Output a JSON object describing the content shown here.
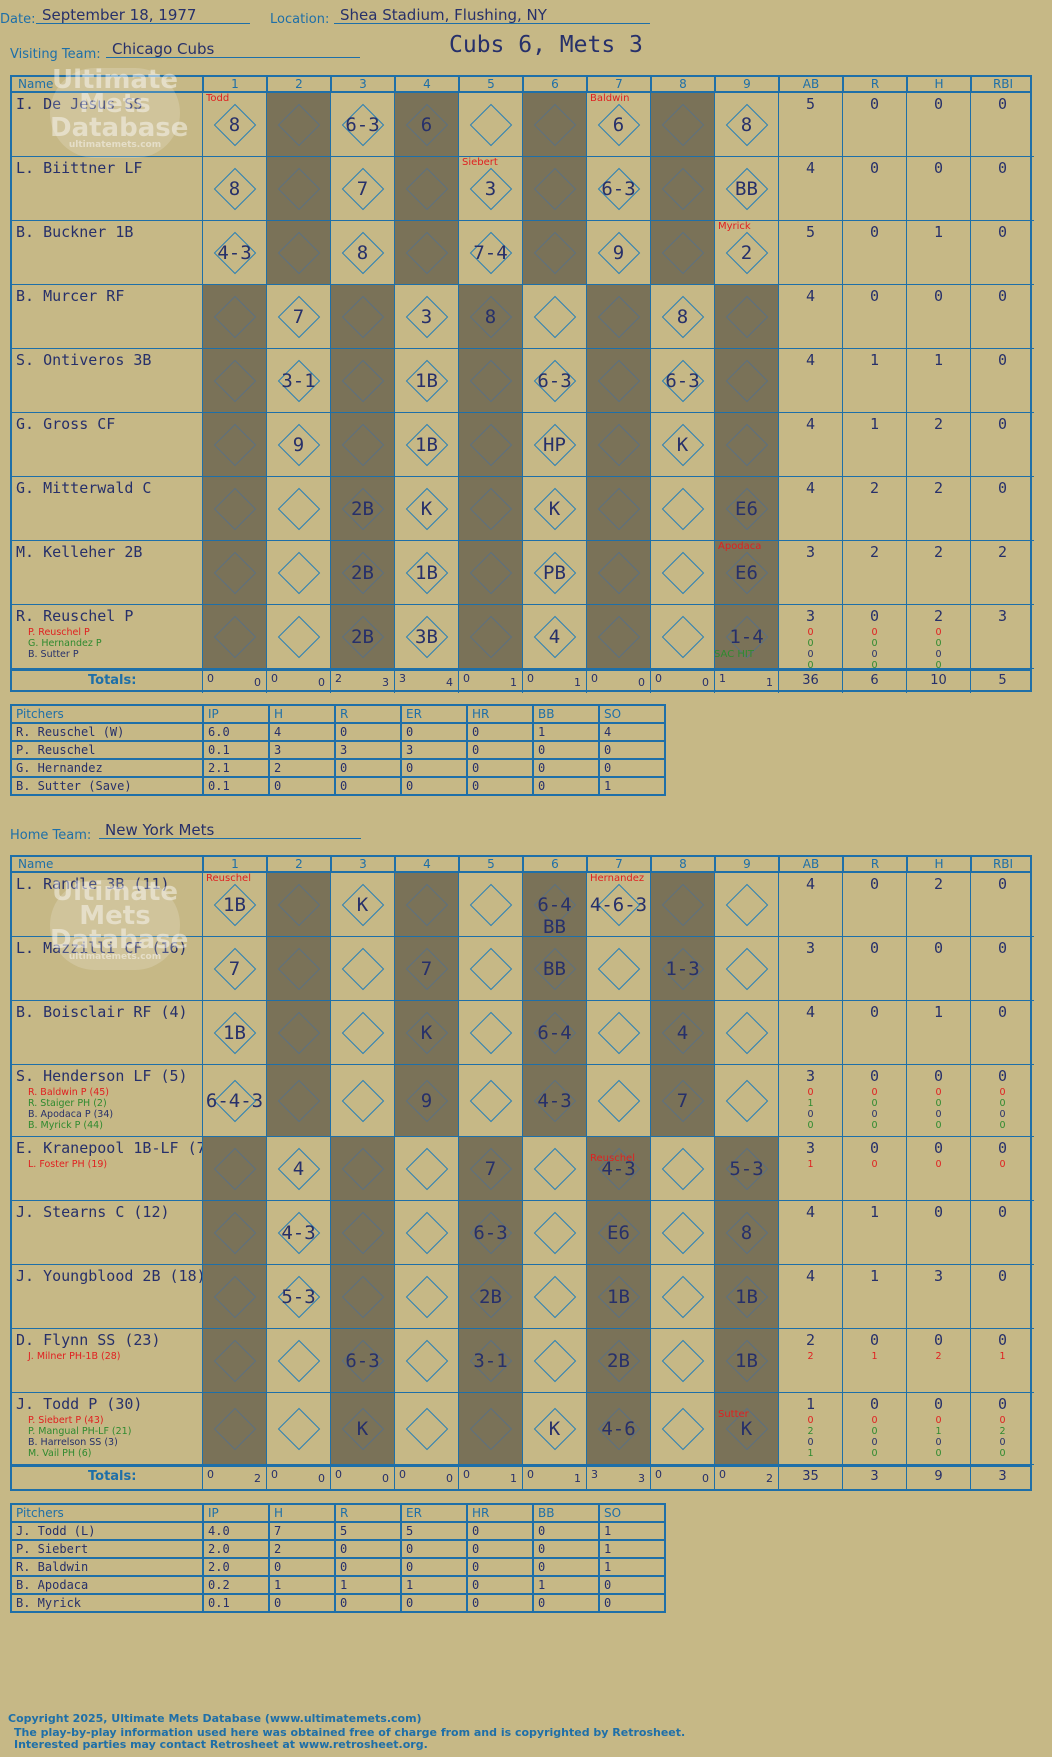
{
  "header": {
    "date_label": "Date:",
    "date": "September 18, 1977",
    "location_label": "Location:",
    "location": "Shea Stadium, Flushing, NY",
    "visiting_label": "Visiting Team:",
    "visiting_team": "Chicago Cubs",
    "score_title": "Cubs 6, Mets 3",
    "home_label": "Home Team:",
    "home_team": "New York Mets"
  },
  "grid_headers": {
    "name": "Name",
    "innings": [
      "1",
      "2",
      "3",
      "4",
      "5",
      "6",
      "7",
      "8",
      "9"
    ],
    "stats": [
      "AB",
      "R",
      "H",
      "RBI"
    ],
    "totals": "Totals:"
  },
  "visitors": {
    "players": [
      {
        "name": "I. De Jesus SS",
        "subs": [],
        "plays": [
          "8",
          "",
          "6-3",
          "6",
          "",
          "",
          "6",
          "",
          "8"
        ],
        "stats": [
          "5",
          "0",
          "0",
          "0"
        ],
        "substats": []
      },
      {
        "name": "L. Biittner LF",
        "subs": [],
        "plays": [
          "8",
          "",
          "7",
          "",
          "3",
          "",
          "6-3",
          "",
          "BB"
        ],
        "stats": [
          "4",
          "0",
          "0",
          "0"
        ],
        "substats": []
      },
      {
        "name": "B. Buckner 1B",
        "subs": [],
        "plays": [
          "4-3",
          "",
          "8",
          "",
          "7-4",
          "",
          "9",
          "",
          "2"
        ],
        "stats": [
          "5",
          "0",
          "1",
          "0"
        ],
        "substats": []
      },
      {
        "name": "B. Murcer RF",
        "subs": [],
        "plays": [
          "",
          "7",
          "",
          "3",
          "8",
          "",
          "",
          "8",
          ""
        ],
        "stats": [
          "4",
          "0",
          "0",
          "0"
        ],
        "substats": []
      },
      {
        "name": "S. Ontiveros 3B",
        "subs": [],
        "plays": [
          "",
          "3-1",
          "",
          "1B",
          "",
          "6-3",
          "",
          "6-3",
          ""
        ],
        "stats": [
          "4",
          "1",
          "1",
          "0"
        ],
        "substats": []
      },
      {
        "name": "G. Gross CF",
        "subs": [],
        "plays": [
          "",
          "9",
          "",
          "1B",
          "",
          "HP",
          "",
          "K",
          ""
        ],
        "stats": [
          "4",
          "1",
          "2",
          "0"
        ],
        "substats": []
      },
      {
        "name": "G. Mitterwald C",
        "subs": [],
        "plays": [
          "",
          "",
          "2B",
          "K",
          "",
          "K",
          "",
          "",
          "E6"
        ],
        "stats": [
          "4",
          "2",
          "2",
          "0"
        ],
        "substats": []
      },
      {
        "name": "M. Kelleher 2B",
        "subs": [],
        "plays": [
          "",
          "",
          "2B",
          "1B",
          "",
          "PB",
          "",
          "",
          "E6"
        ],
        "stats": [
          "3",
          "2",
          "2",
          "2"
        ],
        "substats": []
      },
      {
        "name": "R. Reuschel P",
        "subs": [
          "P. Reuschel P",
          "G. Hernandez P",
          "B. Sutter P"
        ],
        "plays": [
          "",
          "",
          "2B",
          "3B",
          "",
          "4",
          "",
          "",
          "1-4"
        ],
        "stats": [
          "3",
          "0",
          "2",
          "3"
        ],
        "substats": [
          [
            "0",
            "0",
            "0"
          ],
          [
            "0",
            "0",
            "0"
          ],
          [
            "0",
            "0",
            "0"
          ],
          [
            "0",
            "0",
            "0"
          ]
        ]
      }
    ],
    "pitch_changes": [
      "Todd",
      "Siebert",
      "Baldwin",
      "Myrick",
      "Apodaca"
    ],
    "sac_hit": "SAC HIT",
    "inning_totals": [
      [
        "0",
        "0"
      ],
      [
        "0",
        "0"
      ],
      [
        "2",
        "3"
      ],
      [
        "3",
        "4"
      ],
      [
        "0",
        "1"
      ],
      [
        "0",
        "1"
      ],
      [
        "0",
        "0"
      ],
      [
        "0",
        "0"
      ],
      [
        "1",
        "1"
      ]
    ],
    "totals": [
      "36",
      "6",
      "10",
      "5"
    ]
  },
  "visitor_pitchers": {
    "headers": [
      "Pitchers",
      "IP",
      "H",
      "R",
      "ER",
      "HR",
      "BB",
      "SO"
    ],
    "rows": [
      [
        "R. Reuschel (W)",
        "6.0",
        "4",
        "0",
        "0",
        "0",
        "1",
        "4"
      ],
      [
        "P. Reuschel",
        "0.1",
        "3",
        "3",
        "3",
        "0",
        "0",
        "0"
      ],
      [
        "G. Hernandez",
        "2.1",
        "2",
        "0",
        "0",
        "0",
        "0",
        "0"
      ],
      [
        "B. Sutter (Save)",
        "0.1",
        "0",
        "0",
        "0",
        "0",
        "0",
        "1"
      ]
    ]
  },
  "home": {
    "players": [
      {
        "name": "L. Randle 3B (11)",
        "subs": [],
        "plays": [
          "1B",
          "",
          "K",
          "",
          "",
          "6-4 BB",
          "4-6-3",
          "",
          ""
        ],
        "stats": [
          "4",
          "0",
          "2",
          "0"
        ],
        "substats": []
      },
      {
        "name": "L. Mazzilli CF (16)",
        "subs": [],
        "plays": [
          "7",
          "",
          "",
          "7",
          "",
          "BB",
          "",
          "1-3",
          ""
        ],
        "stats": [
          "3",
          "0",
          "0",
          "0"
        ],
        "substats": []
      },
      {
        "name": "B. Boisclair RF (4)",
        "subs": [],
        "plays": [
          "1B",
          "",
          "",
          "K",
          "",
          "6-4",
          "",
          "4",
          ""
        ],
        "stats": [
          "4",
          "0",
          "1",
          "0"
        ],
        "substats": []
      },
      {
        "name": "S. Henderson LF (5)",
        "subs": [
          "R. Baldwin P (45)",
          "R. Staiger PH (2)",
          "B. Apodaca P (34)",
          "B. Myrick P (44)"
        ],
        "plays": [
          "6-4-3",
          "",
          "",
          "9",
          "",
          "4-3",
          "",
          "7",
          ""
        ],
        "stats": [
          "3",
          "0",
          "0",
          "0"
        ],
        "substats": [
          [
            "0",
            "0",
            "0",
            "0"
          ],
          [
            "1",
            "0",
            "0",
            "0"
          ],
          [
            "0",
            "0",
            "0",
            "0"
          ],
          [
            "0",
            "0",
            "0",
            "0"
          ]
        ]
      },
      {
        "name": "E. Kranepool 1B-LF (7)",
        "subs": [
          "L. Foster PH (19)"
        ],
        "plays": [
          "",
          "4",
          "",
          "",
          "7",
          "",
          "4-3",
          "",
          "5-3"
        ],
        "stats": [
          "3",
          "0",
          "0",
          "0"
        ],
        "substats": [
          [
            "1",
            "0",
            "0",
            "0"
          ]
        ]
      },
      {
        "name": "J. Stearns C (12)",
        "subs": [],
        "plays": [
          "",
          "4-3",
          "",
          "",
          "6-3",
          "",
          "E6",
          "",
          "8"
        ],
        "stats": [
          "4",
          "1",
          "0",
          "0"
        ],
        "substats": []
      },
      {
        "name": "J. Youngblood 2B (18)",
        "subs": [],
        "plays": [
          "",
          "5-3",
          "",
          "",
          "2B",
          "",
          "1B",
          "",
          "1B"
        ],
        "stats": [
          "4",
          "1",
          "3",
          "0"
        ],
        "substats": []
      },
      {
        "name": "D. Flynn SS (23)",
        "subs": [
          "J. Milner PH-1B (28)"
        ],
        "plays": [
          "",
          "",
          "6-3",
          "",
          "3-1",
          "",
          "2B",
          "",
          "1B"
        ],
        "stats": [
          "2",
          "0",
          "0",
          "0"
        ],
        "substats": [
          [
            "2",
            "1",
            "2",
            "1"
          ]
        ]
      },
      {
        "name": "J. Todd P (30)",
        "subs": [
          "P. Siebert P (43)",
          "P. Mangual PH-LF (21)",
          "B. Harrelson SS (3)",
          "M. Vail PH (6)"
        ],
        "plays": [
          "",
          "",
          "K",
          "",
          "",
          "K",
          "4-6",
          "",
          "K"
        ],
        "stats": [
          "1",
          "0",
          "0",
          "0"
        ],
        "substats": [
          [
            "0",
            "0",
            "0",
            "0"
          ],
          [
            "2",
            "0",
            "1",
            "2"
          ],
          [
            "0",
            "0",
            "0",
            "0"
          ],
          [
            "1",
            "0",
            "0",
            "0"
          ]
        ]
      }
    ],
    "pitch_changes": [
      "Reuschel",
      "Hernandez",
      "Reuschel",
      "Sutter"
    ],
    "inning_totals": [
      [
        "0",
        "2"
      ],
      [
        "0",
        "0"
      ],
      [
        "0",
        "0"
      ],
      [
        "0",
        "0"
      ],
      [
        "0",
        "1"
      ],
      [
        "0",
        "1"
      ],
      [
        "3",
        "3"
      ],
      [
        "0",
        "0"
      ],
      [
        "0",
        "2"
      ]
    ],
    "totals": [
      "35",
      "3",
      "9",
      "3"
    ]
  },
  "home_pitchers": {
    "headers": [
      "Pitchers",
      "IP",
      "H",
      "R",
      "ER",
      "HR",
      "BB",
      "SO"
    ],
    "rows": [
      [
        "J. Todd (L)",
        "4.0",
        "7",
        "5",
        "5",
        "0",
        "0",
        "1"
      ],
      [
        "P. Siebert",
        "2.0",
        "2",
        "0",
        "0",
        "0",
        "0",
        "1"
      ],
      [
        "R. Baldwin",
        "2.0",
        "0",
        "0",
        "0",
        "0",
        "0",
        "1"
      ],
      [
        "B. Apodaca",
        "0.2",
        "1",
        "1",
        "1",
        "0",
        "1",
        "0"
      ],
      [
        "B. Myrick",
        "0.1",
        "0",
        "0",
        "0",
        "0",
        "0",
        "0"
      ]
    ]
  },
  "watermark": [
    "Ultimate",
    "Mets",
    "Database",
    "ultimatemets.com"
  ],
  "footer": {
    "copyright": "Copyright 2025, Ultimate Mets Database (www.ultimatemets.com)",
    "retro1": "The play-by-play information used here was obtained free of charge from and is copyrighted by Retrosheet.",
    "retro2": "Interested parties may contact Retrosheet at www.retrosheet.org."
  },
  "colors": {
    "background": "#c6b886",
    "grid": "#1e6fa8",
    "ink": "#27306a",
    "dark_cell": "#7a7258",
    "red": "#e02020",
    "green": "#2f8a2f",
    "run": "#27306a"
  }
}
